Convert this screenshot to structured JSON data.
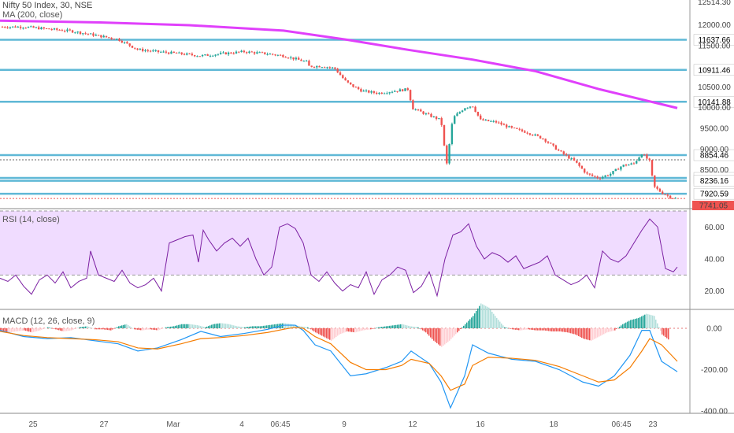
{
  "legends": {
    "symbol": "Nifty 50 Index, 30, NSE",
    "ma": "MA (200, close)",
    "rsi": "RSI (14, close)",
    "macd": "MACD (12, 26, close, 9)"
  },
  "colors": {
    "up": "#26a69a",
    "down": "#ef5350",
    "ma": "#e040fb",
    "level": "#5fb8d6",
    "rsi": "#7b1fa2",
    "rsi_band": "#f0dcff",
    "macd": "#2196f3",
    "signal": "#f57c00"
  },
  "chart_data": [
    {
      "type": "candlestick",
      "title": "Nifty 50 Index, 30, NSE",
      "ylim": [
        7620,
        12560
      ],
      "price_ticks": [
        "12000.00",
        "11500.00",
        "10500.00",
        "10000.00",
        "9500.00",
        "9000.00",
        "8500.00"
      ],
      "top_tag": "12514.30",
      "horizontal_levels": [
        "11637.66",
        "10911.46",
        "10141.88",
        "8854.46",
        "8303.85",
        "8236.16",
        "7920.59"
      ],
      "last_price_tag": "7741.05",
      "ma_overlay": {
        "name": "MA (200, close)",
        "x": [
          0,
          120,
          240,
          360,
          440,
          520,
          600,
          680,
          760,
          860
        ],
        "y": [
          12100,
          12060,
          11990,
          11860,
          11640,
          11390,
          11160,
          10880,
          10450,
          9990
        ]
      },
      "close_path": {
        "x": [
          0,
          30,
          60,
          90,
          120,
          150,
          175,
          200,
          230,
          255,
          280,
          310,
          340,
          360,
          390,
          392,
          410,
          425,
          438,
          445,
          460,
          480,
          500,
          520,
          522,
          540,
          560,
          567,
          575,
          590,
          600,
          610,
          630,
          650,
          670,
          690,
          710,
          730,
          745,
          760,
          775,
          790,
          805,
          815,
          825,
          830,
          840,
          850,
          860
        ],
        "y": [
          11950,
          11950,
          11900,
          11850,
          11750,
          11650,
          11400,
          11350,
          11300,
          11250,
          11300,
          11350,
          11300,
          11250,
          11100,
          11000,
          11000,
          10950,
          10650,
          10550,
          10400,
          10350,
          10400,
          10450,
          10000,
          9850,
          9700,
          8600,
          9750,
          10000,
          10050,
          9700,
          9650,
          9500,
          9400,
          9250,
          8950,
          8700,
          8400,
          8300,
          8400,
          8600,
          8650,
          8900,
          8700,
          8100,
          7950,
          7850,
          7800
        ]
      }
    },
    {
      "type": "line",
      "title": "RSI (14, close)",
      "ylim": [
        10,
        70
      ],
      "ticks": [
        "60.00",
        "40.00",
        "20.00"
      ],
      "band": [
        30,
        70
      ],
      "series": [
        {
          "x": [
            0,
            10,
            20,
            30,
            40,
            50,
            60,
            70,
            80,
            90,
            100,
            110,
            115,
            125,
            135,
            145,
            155,
            165,
            175,
            185,
            195,
            205,
            215,
            225,
            235,
            245,
            252,
            258,
            265,
            275,
            285,
            295,
            305,
            315,
            325,
            335,
            345,
            355,
            365,
            375,
            385,
            395,
            405,
            415,
            425,
            435,
            445,
            455,
            465,
            475,
            485,
            495,
            505,
            515,
            525,
            535,
            545,
            555,
            565,
            575,
            585,
            595,
            605,
            615,
            625,
            635,
            645,
            655,
            665,
            675,
            685,
            695,
            705,
            715,
            725,
            735,
            745,
            755,
            765,
            775,
            785,
            795,
            805,
            815,
            825,
            835,
            845,
            855,
            860
          ],
          "y": [
            28,
            26,
            30,
            23,
            18,
            27,
            30,
            25,
            32,
            22,
            26,
            28,
            45,
            30,
            28,
            26,
            33,
            25,
            22,
            24,
            28,
            20,
            50,
            52,
            54,
            55,
            38,
            58,
            52,
            45,
            50,
            53,
            48,
            53,
            40,
            30,
            35,
            60,
            62,
            59,
            50,
            30,
            26,
            32,
            25,
            20,
            24,
            22,
            32,
            18,
            27,
            30,
            35,
            33,
            19,
            23,
            32,
            17,
            40,
            55,
            57,
            62,
            48,
            40,
            44,
            42,
            38,
            42,
            34,
            36,
            38,
            42,
            30,
            27,
            24,
            26,
            30,
            22,
            45,
            40,
            38,
            42,
            50,
            58,
            65,
            60,
            34,
            32,
            35
          ]
        }
      ]
    },
    {
      "type": "line",
      "title": "MACD (12, 26, close, 9)",
      "ylim": [
        -400,
        80
      ],
      "ticks": [
        "0.00",
        "-200.00",
        "-400.00"
      ],
      "histogram": {
        "x": [
          0,
          10,
          20,
          30,
          40,
          50,
          60,
          70,
          80,
          90,
          100,
          110,
          120,
          130,
          140,
          150,
          160,
          170,
          180,
          190,
          200,
          210,
          220,
          230,
          240,
          250,
          260,
          270,
          280,
          290,
          300,
          310,
          320,
          330,
          340,
          350,
          360,
          370,
          380,
          390,
          400,
          410,
          420,
          430,
          440,
          450,
          460,
          470,
          480,
          490,
          500,
          510,
          520,
          530,
          540,
          550,
          560,
          570,
          580,
          590,
          600,
          610,
          620,
          630,
          640,
          650,
          660,
          670,
          680,
          690,
          700,
          710,
          720,
          730,
          740,
          750,
          760,
          770,
          780,
          790,
          800,
          810,
          820,
          830,
          840,
          850
        ],
        "y": [
          -15,
          -20,
          -15,
          -10,
          -20,
          -10,
          5,
          -5,
          -15,
          -10,
          5,
          10,
          -5,
          -5,
          -10,
          10,
          20,
          -5,
          -10,
          -5,
          -10,
          5,
          10,
          20,
          20,
          15,
          5,
          20,
          25,
          20,
          10,
          5,
          10,
          10,
          15,
          20,
          25,
          20,
          10,
          5,
          -20,
          -40,
          -60,
          -30,
          -15,
          -20,
          -10,
          -5,
          5,
          10,
          15,
          20,
          10,
          5,
          -20,
          -60,
          -90,
          -60,
          -20,
          20,
          60,
          120,
          100,
          50,
          5,
          -5,
          -10,
          -5,
          -10,
          -10,
          -15,
          -15,
          -20,
          -30,
          -50,
          -60,
          -40,
          -20,
          -10,
          20,
          40,
          50,
          70,
          60,
          -30,
          -60
        ]
      },
      "series": [
        {
          "x": [
            0,
            30,
            60,
            90,
            120,
            150,
            175,
            200,
            230,
            255,
            280,
            310,
            340,
            360,
            375,
            385,
            400,
            420,
            445,
            465,
            490,
            510,
            522,
            545,
            560,
            572,
            590,
            600,
            620,
            650,
            680,
            710,
            740,
            760,
            780,
            800,
            815,
            825,
            840,
            860
          ],
          "y": [
            -10,
            -40,
            -50,
            -45,
            -60,
            -75,
            -110,
            -95,
            -55,
            -15,
            -40,
            -25,
            -5,
            15,
            15,
            -10,
            -80,
            -110,
            -230,
            -220,
            -190,
            -160,
            -110,
            -170,
            -260,
            -385,
            -230,
            -80,
            -120,
            -150,
            -160,
            -200,
            -260,
            -280,
            -230,
            -130,
            -10,
            -10,
            -160,
            -210
          ]
        },
        {
          "x": [
            0,
            30,
            60,
            90,
            120,
            150,
            175,
            200,
            230,
            255,
            280,
            310,
            340,
            360,
            375,
            385,
            400,
            420,
            445,
            465,
            490,
            510,
            522,
            545,
            560,
            572,
            590,
            600,
            620,
            650,
            680,
            710,
            740,
            760,
            780,
            800,
            815,
            825,
            840,
            860
          ],
          "y": [
            -15,
            -35,
            -45,
            -50,
            -55,
            -65,
            -95,
            -100,
            -75,
            -50,
            -45,
            -35,
            -20,
            -5,
            5,
            0,
            -40,
            -75,
            -165,
            -200,
            -200,
            -180,
            -150,
            -170,
            -230,
            -300,
            -270,
            -180,
            -140,
            -145,
            -155,
            -185,
            -230,
            -260,
            -250,
            -190,
            -110,
            -50,
            -80,
            -160
          ]
        }
      ]
    }
  ],
  "x_labels": [
    "25",
    "27",
    "Mar",
    "4",
    "06:45",
    "9",
    "12",
    "16",
    "18",
    "06:45",
    "23"
  ]
}
